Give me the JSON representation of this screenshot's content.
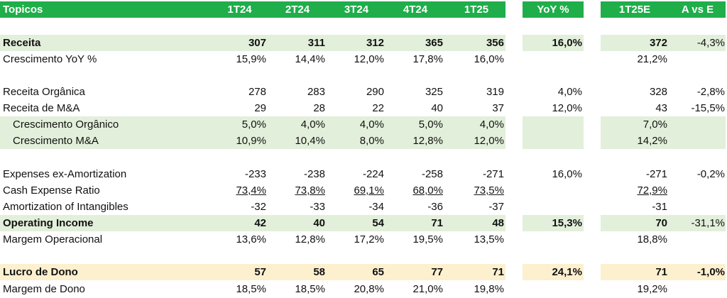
{
  "colors": {
    "header_green": "#1fae4a",
    "light_green": "#e2efda",
    "light_yellow": "#fdf0cf"
  },
  "header": {
    "topicos": "Topicos",
    "q1": "1T24",
    "q2": "2T24",
    "q3": "3T24",
    "q4": "4T24",
    "q5": "1T25",
    "yoy": "YoY %",
    "est": "1T25E",
    "ave": "A vs E"
  },
  "rows": {
    "receita": {
      "label": "Receita",
      "v1": "307",
      "v2": "311",
      "v3": "312",
      "v4": "365",
      "v5": "356",
      "yoy": "16,0%",
      "est": "372",
      "ave": "-4,3%"
    },
    "cresc_yoy": {
      "label": "Crescimento YoY %",
      "v1": "15,9%",
      "v2": "14,4%",
      "v3": "12,0%",
      "v4": "17,8%",
      "v5": "16,0%",
      "est": "21,2%"
    },
    "rec_org": {
      "label": "Receita Orgânica",
      "v1": "278",
      "v2": "283",
      "v3": "290",
      "v4": "325",
      "v5": "319",
      "yoy": "4,0%",
      "est": "328",
      "ave": "-2,8%"
    },
    "rec_ma": {
      "label": "Receita de M&A",
      "v1": "29",
      "v2": "28",
      "v3": "22",
      "v4": "40",
      "v5": "37",
      "yoy": "12,0%",
      "est": "43",
      "ave": "-15,5%"
    },
    "cresc_org": {
      "label": "Crescimento Orgânico",
      "v1": "5,0%",
      "v2": "4,0%",
      "v3": "4,0%",
      "v4": "5,0%",
      "v5": "4,0%",
      "est": "7,0%"
    },
    "cresc_ma": {
      "label": "Crescimento M&A",
      "v1": "10,9%",
      "v2": "10,4%",
      "v3": "8,0%",
      "v4": "12,8%",
      "v5": "12,0%",
      "est": "14,2%"
    },
    "exp": {
      "label": "Expenses ex-Amortization",
      "v1": "-233",
      "v2": "-238",
      "v3": "-224",
      "v4": "-258",
      "v5": "-271",
      "yoy": "16,0%",
      "est": "-271",
      "ave": "-0,2%"
    },
    "cash": {
      "label": "Cash Expense Ratio",
      "v1": "73,4%",
      "v2": "73,8%",
      "v3": "69,1%",
      "v4": "68,0%",
      "v5": "73,5%",
      "est": "72,9%"
    },
    "amort": {
      "label": "Amortization of Intangibles",
      "v1": "-32",
      "v2": "-33",
      "v3": "-34",
      "v4": "-36",
      "v5": "-37",
      "est": "-31"
    },
    "opinc": {
      "label": "Operating Income",
      "v1": "42",
      "v2": "40",
      "v3": "54",
      "v4": "71",
      "v5": "48",
      "yoy": "15,3%",
      "est": "70",
      "ave": "-31,1%"
    },
    "margem_op": {
      "label": "Margem Operacional",
      "v1": "13,6%",
      "v2": "12,8%",
      "v3": "17,2%",
      "v4": "19,5%",
      "v5": "13,5%",
      "est": "18,8%"
    },
    "lucro": {
      "label": "Lucro de Dono",
      "v1": "57",
      "v2": "58",
      "v3": "65",
      "v4": "77",
      "v5": "71",
      "yoy": "24,1%",
      "est": "71",
      "ave": "-1,0%"
    },
    "margem_dono": {
      "label": "Margem de Dono",
      "v1": "18,5%",
      "v2": "18,5%",
      "v3": "20,8%",
      "v4": "21,0%",
      "v5": "19,8%",
      "est": "19,2%"
    }
  }
}
